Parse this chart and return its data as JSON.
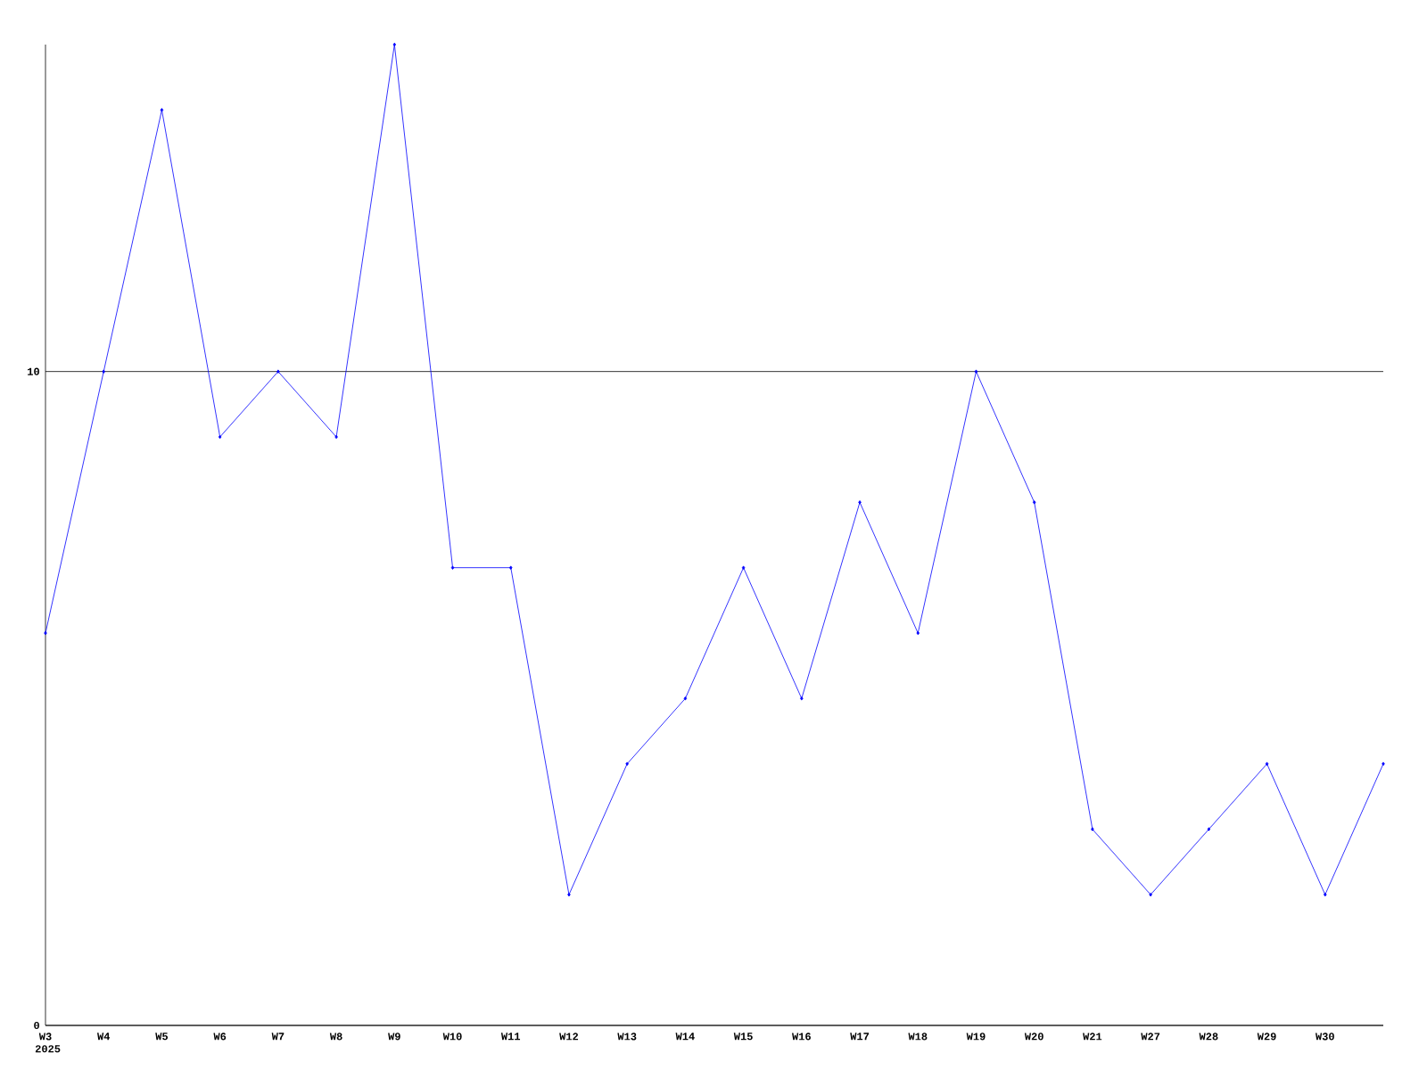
{
  "chart_data": {
    "type": "line",
    "categories": [
      "W3",
      "W4",
      "W5",
      "W6",
      "W7",
      "W8",
      "W9",
      "W10",
      "W11",
      "W12",
      "W13",
      "W14",
      "W15",
      "W16",
      "W17",
      "W18",
      "W19",
      "W20",
      "W21",
      "W27",
      "W28",
      "W29",
      "W30",
      null
    ],
    "series": [
      {
        "color": "#0000ff",
        "values": [
          6,
          10,
          14,
          9,
          10,
          9,
          15,
          7,
          7,
          2,
          4,
          5,
          7,
          5,
          8,
          6,
          10,
          8,
          3,
          2,
          3,
          4,
          2,
          4
        ]
      }
    ],
    "ylim": [
      0,
      15
    ],
    "yticks": [
      0,
      10
    ],
    "grid": "y",
    "marker": "diamond",
    "annotations": [
      "2025"
    ]
  }
}
